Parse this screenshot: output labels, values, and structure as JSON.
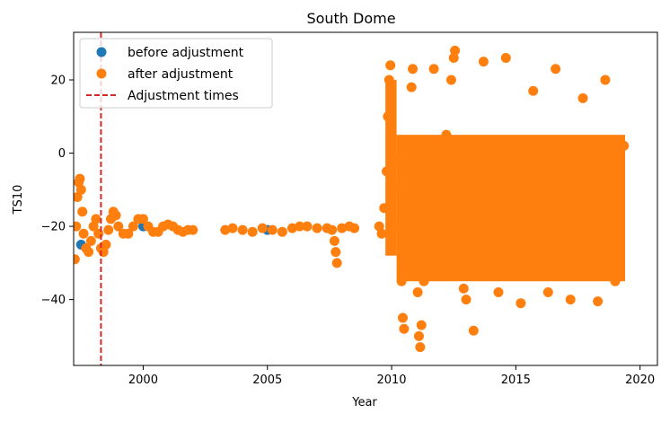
{
  "chart_data": {
    "type": "scatter",
    "title": "South Dome",
    "xlabel": "Year",
    "ylabel": "TS10",
    "xlim": [
      1997.2,
      2020.7
    ],
    "ylim": [
      -58,
      33
    ],
    "xticks": [
      {
        "value": 2000,
        "label": "2000"
      },
      {
        "value": 2005,
        "label": "2005"
      },
      {
        "value": 2010,
        "label": "2010"
      },
      {
        "value": 2015,
        "label": "2015"
      },
      {
        "value": 2020,
        "label": "2020"
      }
    ],
    "yticks": [
      {
        "value": 20,
        "label": "20"
      },
      {
        "value": 0,
        "label": "0"
      },
      {
        "value": -20,
        "label": "−20"
      },
      {
        "value": -40,
        "label": "−40"
      }
    ],
    "grid": false,
    "legend": {
      "position": "upper-left",
      "entries": [
        {
          "label": "before adjustment",
          "marker": "circle",
          "color": "#1f77b4"
        },
        {
          "label": "after adjustment",
          "marker": "circle",
          "color": "#ff7f0e"
        },
        {
          "label": "Adjustment times",
          "marker": "dashed-line",
          "color": "#d62728"
        }
      ]
    },
    "adjustment_times": [
      1998.3
    ],
    "series": [
      {
        "name": "before adjustment",
        "color": "#1f77b4",
        "points": [
          [
            1997.5,
            -25
          ],
          [
            2000,
            -20
          ],
          [
            2005,
            -21
          ]
        ]
      },
      {
        "name": "after adjustment",
        "color": "#ff7f0e",
        "points": [
          [
            1997.25,
            -29
          ],
          [
            1997.3,
            -20
          ],
          [
            1997.35,
            -12
          ],
          [
            1997.4,
            -8
          ],
          [
            1997.45,
            -7
          ],
          [
            1997.5,
            -10
          ],
          [
            1997.55,
            -16
          ],
          [
            1997.6,
            -22
          ],
          [
            1997.7,
            -26
          ],
          [
            1997.8,
            -27
          ],
          [
            1997.9,
            -24
          ],
          [
            1998.0,
            -20
          ],
          [
            1998.1,
            -18
          ],
          [
            1998.2,
            -22
          ],
          [
            1998.3,
            -26
          ],
          [
            1998.4,
            -27
          ],
          [
            1998.5,
            -25
          ],
          [
            1998.6,
            -21
          ],
          [
            1998.7,
            -18
          ],
          [
            1998.8,
            -16
          ],
          [
            1998.9,
            -17
          ],
          [
            1999.0,
            -20
          ],
          [
            1999.2,
            -22
          ],
          [
            1999.4,
            -22
          ],
          [
            1999.6,
            -20
          ],
          [
            1999.8,
            -18
          ],
          [
            2000.0,
            -18
          ],
          [
            2000.2,
            -20
          ],
          [
            2000.4,
            -21.5
          ],
          [
            2000.6,
            -21.5
          ],
          [
            2000.8,
            -20
          ],
          [
            2001.0,
            -19.5
          ],
          [
            2001.2,
            -20
          ],
          [
            2001.4,
            -21
          ],
          [
            2001.6,
            -21.5
          ],
          [
            2001.8,
            -21
          ],
          [
            2002.0,
            -21
          ],
          [
            2003.3,
            -21
          ],
          [
            2003.6,
            -20.5
          ],
          [
            2004.0,
            -21
          ],
          [
            2004.4,
            -21.5
          ],
          [
            2004.8,
            -20.5
          ],
          [
            2005.2,
            -21
          ],
          [
            2005.6,
            -21.5
          ],
          [
            2006.0,
            -20.5
          ],
          [
            2006.3,
            -20
          ],
          [
            2006.6,
            -20
          ],
          [
            2007.0,
            -20.5
          ],
          [
            2007.4,
            -20.5
          ],
          [
            2007.6,
            -21
          ],
          [
            2007.7,
            -24
          ],
          [
            2007.75,
            -27
          ],
          [
            2007.8,
            -30
          ],
          [
            2008.0,
            -20.5
          ],
          [
            2008.3,
            -20
          ],
          [
            2008.5,
            -20.5
          ],
          [
            2009.5,
            -20
          ],
          [
            2009.6,
            -22
          ],
          [
            2009.7,
            -15
          ],
          [
            2009.8,
            -5
          ],
          [
            2009.85,
            10
          ],
          [
            2009.9,
            20
          ],
          [
            2009.95,
            24
          ],
          [
            2010.0,
            14
          ],
          [
            2010.1,
            -2
          ],
          [
            2010.2,
            -10
          ],
          [
            2010.3,
            -20
          ],
          [
            2010.4,
            -35
          ],
          [
            2010.45,
            -45
          ],
          [
            2010.5,
            -48
          ],
          [
            2010.6,
            -30
          ],
          [
            2010.7,
            -15
          ],
          [
            2010.8,
            18
          ],
          [
            2010.85,
            23
          ],
          [
            2010.9,
            -5
          ],
          [
            2011.0,
            -25
          ],
          [
            2011.05,
            -38
          ],
          [
            2011.1,
            -50
          ],
          [
            2011.15,
            -53
          ],
          [
            2011.2,
            -47
          ],
          [
            2011.3,
            -35
          ],
          [
            2011.5,
            -10
          ],
          [
            2011.7,
            23
          ],
          [
            2012.0,
            -30
          ],
          [
            2012.2,
            5
          ],
          [
            2012.4,
            20
          ],
          [
            2012.5,
            26
          ],
          [
            2012.55,
            28
          ],
          [
            2012.7,
            -10
          ],
          [
            2012.9,
            -37
          ],
          [
            2013.0,
            -40
          ],
          [
            2013.3,
            -48.5
          ],
          [
            2013.5,
            -20
          ],
          [
            2013.7,
            25
          ],
          [
            2014.0,
            -20
          ],
          [
            2014.3,
            -38
          ],
          [
            2014.6,
            26
          ],
          [
            2014.8,
            -10
          ],
          [
            2015.2,
            -41
          ],
          [
            2015.5,
            -20
          ],
          [
            2015.7,
            17
          ],
          [
            2016.0,
            -15
          ],
          [
            2016.3,
            -38
          ],
          [
            2016.6,
            23
          ],
          [
            2016.8,
            -5
          ],
          [
            2017.2,
            -40
          ],
          [
            2017.5,
            -10
          ],
          [
            2017.7,
            15
          ],
          [
            2018.0,
            -20
          ],
          [
            2018.3,
            -40.5
          ],
          [
            2018.6,
            20
          ],
          [
            2018.8,
            -5
          ],
          [
            2019.0,
            -35
          ],
          [
            2019.2,
            -20
          ],
          [
            2019.35,
            2
          ]
        ]
      }
    ],
    "dense_bands": [
      {
        "x0": 2009.75,
        "x1": 2010.2,
        "y0": -28,
        "y1": 20
      },
      {
        "x0": 2010.2,
        "x1": 2011.3,
        "y0": -35,
        "y1": 5
      },
      {
        "x0": 2011.3,
        "x1": 2019.4,
        "y0": -35,
        "y1": 5
      }
    ]
  }
}
